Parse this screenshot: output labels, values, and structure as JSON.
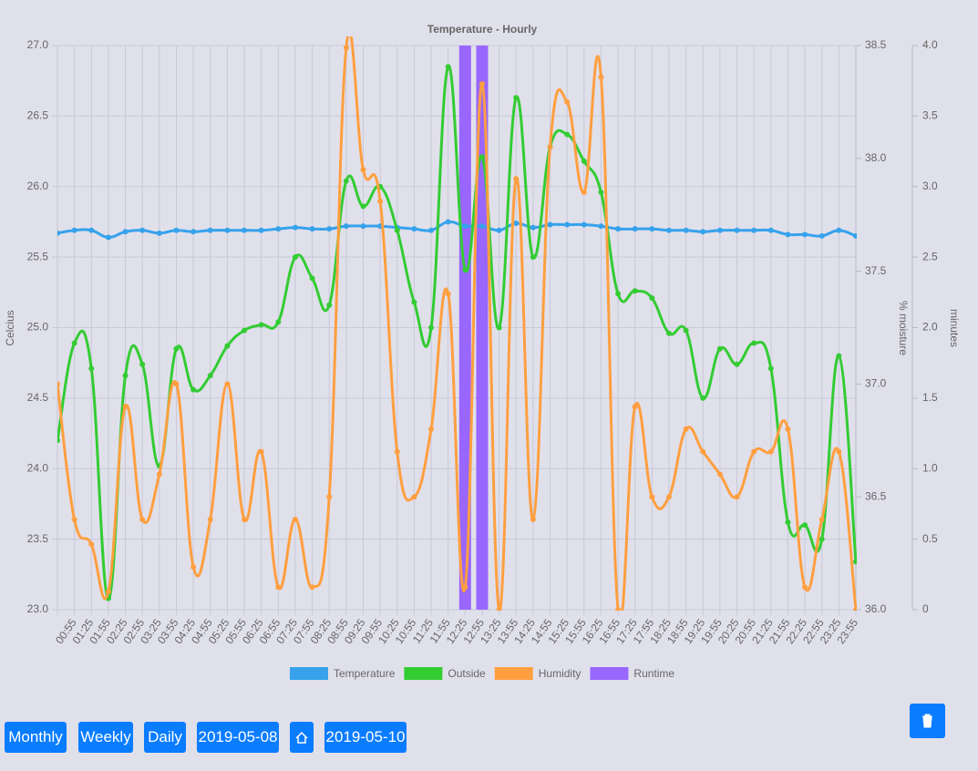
{
  "chart_data": {
    "type": "line",
    "title": "Temperature - Hourly",
    "categories": [
      null,
      "00:55",
      "01:25",
      "01:55",
      "02:25",
      "02:55",
      "03:25",
      "03:55",
      "04:25",
      "04:55",
      "05:25",
      "05:55",
      "06:25",
      "06:55",
      "07:25",
      "07:55",
      "08:25",
      "08:55",
      "09:25",
      "09:55",
      "10:25",
      "10:55",
      "11:25",
      "11:55",
      "12:25",
      "12:55",
      "13:25",
      "13:55",
      "14:25",
      "14:55",
      "15:25",
      "15:55",
      "16:25",
      "16:55",
      "17:25",
      "17:55",
      "18:25",
      "18:55",
      "19:25",
      "19:55",
      "20:25",
      "20:55",
      "21:25",
      "21:55",
      "22:25",
      "22:55",
      "23:25",
      "23:55"
    ],
    "series": [
      {
        "name": "Temperature",
        "color": "#36a2eb",
        "axis": "y",
        "values": [
          25.67,
          25.69,
          25.69,
          25.64,
          25.68,
          25.69,
          25.67,
          25.69,
          25.68,
          25.69,
          25.69,
          25.69,
          25.69,
          25.7,
          25.71,
          25.7,
          25.7,
          25.72,
          25.72,
          25.72,
          25.71,
          25.7,
          25.69,
          25.75,
          25.72,
          25.72,
          25.69,
          25.74,
          25.71,
          25.73,
          25.73,
          25.73,
          25.72,
          25.7,
          25.7,
          25.7,
          25.69,
          25.69,
          25.68,
          25.69,
          25.69,
          25.69,
          25.69,
          25.66,
          25.66,
          25.65,
          25.69,
          25.65
        ]
      },
      {
        "name": "Outside",
        "color": "#33cc33",
        "axis": "y",
        "values": [
          24.2,
          24.89,
          24.71,
          23.08,
          24.66,
          24.74,
          24.02,
          24.85,
          24.56,
          24.66,
          24.87,
          24.98,
          25.02,
          25.04,
          25.5,
          25.35,
          25.16,
          26.04,
          25.86,
          26.0,
          25.69,
          25.18,
          25.0,
          26.85,
          25.41,
          26.21,
          25.0,
          26.63,
          25.5,
          26.28,
          26.37,
          26.18,
          25.96,
          25.24,
          25.26,
          25.21,
          24.96,
          24.98,
          24.5,
          24.85,
          24.74,
          24.89,
          24.71,
          23.62,
          23.6,
          23.5,
          24.8,
          23.34
        ]
      },
      {
        "name": "Humidity",
        "color": "#ff9f40",
        "axis": "y2",
        "values": [
          37.0,
          36.4,
          36.29,
          36.08,
          36.9,
          36.4,
          36.6,
          37.0,
          36.19,
          36.4,
          37.0,
          36.4,
          36.7,
          36.1,
          36.4,
          36.1,
          36.5,
          38.49,
          37.95,
          37.81,
          36.7,
          36.5,
          36.8,
          37.4,
          36.1,
          38.33,
          36.0,
          37.91,
          36.4,
          38.05,
          38.25,
          37.85,
          38.36,
          36.0,
          36.9,
          36.5,
          36.5,
          36.8,
          36.7,
          36.6,
          36.5,
          36.7,
          36.7,
          36.8,
          36.1,
          36.4,
          36.7,
          36.0
        ]
      },
      {
        "name": "Runtime",
        "color": "#9966ff",
        "axis": "y3",
        "type": "bar",
        "values": [
          0,
          0,
          0,
          0,
          0,
          0,
          0,
          0,
          0,
          0,
          0,
          0,
          0,
          0,
          0,
          0,
          0,
          0,
          0,
          0,
          0,
          0,
          0,
          0,
          4,
          4,
          0,
          0,
          0,
          0,
          0,
          0,
          0,
          0,
          0,
          0,
          0,
          0,
          0,
          0,
          0,
          0,
          0,
          0,
          0,
          0,
          0,
          0
        ]
      }
    ],
    "ylabel": "Celcius",
    "ylim": [
      23,
      27
    ],
    "yticks": [
      {
        "value": 23,
        "label": "23.0"
      },
      23.5,
      {
        "value": 24,
        "label": "24.0"
      },
      24.5,
      {
        "value": 25,
        "label": "25.0"
      },
      25.5,
      {
        "value": 26,
        "label": "26.0"
      },
      26.5,
      {
        "value": 27,
        "label": "27.0"
      }
    ],
    "y2label": "% moisture",
    "y2lim": [
      36,
      38.5
    ],
    "y2ticks": [
      {
        "value": 36,
        "label": "36.0"
      },
      36.5,
      {
        "value": 37,
        "label": "37.0"
      },
      37.5,
      {
        "value": 38,
        "label": "38.0"
      },
      38.5
    ],
    "y3label": "minutes",
    "y3lim": [
      0,
      4
    ],
    "y3ticks": [
      0,
      0.5,
      {
        "value": 1,
        "label": "1.0"
      },
      1.5,
      {
        "value": 2,
        "label": "2.0"
      },
      2.5,
      {
        "value": 3,
        "label": "3.0"
      },
      3.5,
      {
        "value": 4,
        "label": "4.0"
      }
    ],
    "grid": true,
    "legend": "bottom"
  },
  "buttons": [
    "Monthly",
    "Weekly",
    "Daily",
    "2019-05-08",
    "2019-05-10"
  ]
}
